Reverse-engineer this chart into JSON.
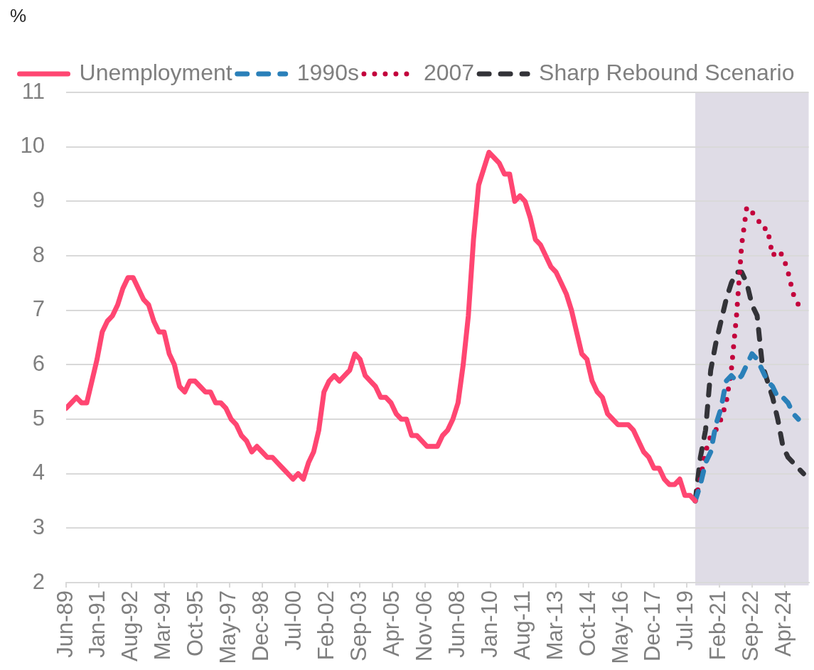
{
  "chart_data": {
    "type": "line",
    "ylabel": "%",
    "x": [
      "1989-06",
      "1989-09",
      "1989-12",
      "1990-03",
      "1990-06",
      "1990-09",
      "1990-12",
      "1991-03",
      "1991-06",
      "1991-09",
      "1991-12",
      "1992-03",
      "1992-06",
      "1992-09",
      "1992-12",
      "1993-03",
      "1993-06",
      "1993-09",
      "1993-12",
      "1994-03",
      "1994-06",
      "1994-09",
      "1994-12",
      "1995-03",
      "1995-06",
      "1995-09",
      "1995-12",
      "1996-03",
      "1996-06",
      "1996-09",
      "1996-12",
      "1997-03",
      "1997-06",
      "1997-09",
      "1997-12",
      "1998-03",
      "1998-06",
      "1998-09",
      "1998-12",
      "1999-03",
      "1999-06",
      "1999-09",
      "1999-12",
      "2000-03",
      "2000-06",
      "2000-09",
      "2000-12",
      "2001-03",
      "2001-06",
      "2001-09",
      "2001-12",
      "2002-03",
      "2002-06",
      "2002-09",
      "2002-12",
      "2003-03",
      "2003-06",
      "2003-09",
      "2003-12",
      "2004-03",
      "2004-06",
      "2004-09",
      "2004-12",
      "2005-03",
      "2005-06",
      "2005-09",
      "2005-12",
      "2006-03",
      "2006-06",
      "2006-09",
      "2006-12",
      "2007-03",
      "2007-06",
      "2007-09",
      "2007-12",
      "2008-03",
      "2008-06",
      "2008-09",
      "2008-12",
      "2009-03",
      "2009-06",
      "2009-09",
      "2009-12",
      "2010-03",
      "2010-06",
      "2010-09",
      "2010-12",
      "2011-03",
      "2011-06",
      "2011-09",
      "2011-12",
      "2012-03",
      "2012-06",
      "2012-09",
      "2012-12",
      "2013-03",
      "2013-06",
      "2013-09",
      "2013-12",
      "2014-03",
      "2014-06",
      "2014-09",
      "2014-12",
      "2015-03",
      "2015-06",
      "2015-09",
      "2015-12",
      "2016-03",
      "2016-06",
      "2016-09",
      "2016-12",
      "2017-03",
      "2017-06",
      "2017-09",
      "2017-12",
      "2018-03",
      "2018-06",
      "2018-09",
      "2018-12",
      "2019-03",
      "2019-06",
      "2019-09",
      "2019-12"
    ],
    "series": [
      {
        "name": "Unemployment",
        "color": "#ff4672",
        "line_style": "solid",
        "values": [
          5.2,
          5.3,
          5.4,
          5.3,
          5.3,
          5.7,
          6.1,
          6.6,
          6.8,
          6.9,
          7.1,
          7.4,
          7.6,
          7.6,
          7.4,
          7.2,
          7.1,
          6.8,
          6.6,
          6.6,
          6.2,
          6.0,
          5.6,
          5.5,
          5.7,
          5.7,
          5.6,
          5.5,
          5.5,
          5.3,
          5.3,
          5.2,
          5.0,
          4.9,
          4.7,
          4.6,
          4.4,
          4.5,
          4.4,
          4.3,
          4.3,
          4.2,
          4.1,
          4.0,
          3.9,
          4.0,
          3.9,
          4.2,
          4.4,
          4.8,
          5.5,
          5.7,
          5.8,
          5.7,
          5.8,
          5.9,
          6.2,
          6.1,
          5.8,
          5.7,
          5.6,
          5.4,
          5.4,
          5.3,
          5.1,
          5.0,
          5.0,
          4.7,
          4.7,
          4.6,
          4.5,
          4.5,
          4.5,
          4.7,
          4.8,
          5.0,
          5.3,
          6.0,
          6.9,
          8.3,
          9.3,
          9.6,
          9.9,
          9.8,
          9.7,
          9.5,
          9.5,
          9.0,
          9.1,
          9.0,
          8.7,
          8.3,
          8.2,
          8.0,
          7.8,
          7.7,
          7.5,
          7.3,
          7.0,
          6.6,
          6.2,
          6.1,
          5.7,
          5.5,
          5.4,
          5.1,
          5.0,
          4.9,
          4.9,
          4.9,
          4.8,
          4.6,
          4.4,
          4.3,
          4.1,
          4.1,
          3.9,
          3.8,
          3.8,
          3.9,
          3.6,
          3.6,
          3.5
        ]
      },
      {
        "name": "1990s",
        "color": "#2a80b9",
        "line_style": "dashed",
        "x": [
          "2019-12",
          "2020-03",
          "2020-06",
          "2020-09",
          "2020-12",
          "2021-03",
          "2021-06",
          "2021-09",
          "2021-12",
          "2022-03",
          "2022-06",
          "2022-09",
          "2022-12",
          "2023-03",
          "2023-06",
          "2023-09",
          "2023-12",
          "2024-03",
          "2024-06",
          "2024-09",
          "2024-12"
        ],
        "values": [
          3.5,
          3.8,
          4.2,
          4.4,
          4.9,
          5.2,
          5.7,
          5.8,
          5.7,
          5.8,
          6.0,
          6.2,
          6.1,
          5.9,
          5.7,
          5.6,
          5.4,
          5.4,
          5.3,
          5.1,
          5.0
        ]
      },
      {
        "name": "2007",
        "color": "#c3003c",
        "line_style": "dotted",
        "x": [
          "2019-12",
          "2020-03",
          "2020-06",
          "2020-09",
          "2020-12",
          "2021-03",
          "2021-06",
          "2021-09",
          "2021-12",
          "2022-03",
          "2022-06",
          "2022-09",
          "2022-12",
          "2023-03",
          "2023-06",
          "2023-09",
          "2023-12",
          "2024-03",
          "2024-06",
          "2024-09",
          "2024-12"
        ],
        "values": [
          3.5,
          3.9,
          4.4,
          4.7,
          4.8,
          5.0,
          5.3,
          5.9,
          6.9,
          8.2,
          8.9,
          8.8,
          8.7,
          8.5,
          8.5,
          8.0,
          8.1,
          8.0,
          7.7,
          7.3,
          7.1
        ]
      },
      {
        "name": "Sharp Rebound Scenario",
        "color": "#333338",
        "line_style": "dashed",
        "x": [
          "2019-12",
          "2020-03",
          "2020-06",
          "2020-09",
          "2020-12",
          "2021-03",
          "2021-06",
          "2021-09",
          "2021-12",
          "2022-03",
          "2022-06",
          "2022-09",
          "2022-12",
          "2023-03",
          "2023-06",
          "2023-09",
          "2023-12",
          "2024-03",
          "2024-06",
          "2024-09",
          "2024-12",
          "2025-03"
        ],
        "values": [
          3.5,
          4.3,
          4.8,
          5.9,
          6.4,
          6.8,
          7.2,
          7.5,
          7.7,
          7.7,
          7.5,
          7.1,
          6.9,
          6.0,
          5.7,
          5.4,
          5.0,
          4.5,
          4.3,
          4.2,
          4.1,
          4.0
        ]
      }
    ],
    "xlim": [
      "1989-06",
      "2025-06"
    ],
    "xticks": [
      {
        "value": "1989-06",
        "label": "Jun-89"
      },
      {
        "value": "1991-01",
        "label": "Jan-91"
      },
      {
        "value": "1992-08",
        "label": "Aug-92"
      },
      {
        "value": "1994-03",
        "label": "Mar-94"
      },
      {
        "value": "1995-10",
        "label": "Oct-95"
      },
      {
        "value": "1997-05",
        "label": "May-97"
      },
      {
        "value": "1998-12",
        "label": "Dec-98"
      },
      {
        "value": "2000-07",
        "label": "Jul-00"
      },
      {
        "value": "2002-02",
        "label": "Feb-02"
      },
      {
        "value": "2003-09",
        "label": "Sep-03"
      },
      {
        "value": "2005-04",
        "label": "Apr-05"
      },
      {
        "value": "2006-11",
        "label": "Nov-06"
      },
      {
        "value": "2008-06",
        "label": "Jun-08"
      },
      {
        "value": "2010-01",
        "label": "Jan-10"
      },
      {
        "value": "2011-08",
        "label": "Aug-11"
      },
      {
        "value": "2013-03",
        "label": "Mar-13"
      },
      {
        "value": "2014-10",
        "label": "Oct-14"
      },
      {
        "value": "2016-05",
        "label": "May-16"
      },
      {
        "value": "2017-12",
        "label": "Dec-17"
      },
      {
        "value": "2019-07",
        "label": "Jul-19"
      },
      {
        "value": "2021-02",
        "label": "Feb-21"
      },
      {
        "value": "2022-09",
        "label": "Sep-22"
      },
      {
        "value": "2024-04",
        "label": "Apr-24"
      }
    ],
    "ylim": [
      2,
      11
    ],
    "yticks": [
      2,
      3,
      4,
      5,
      6,
      7,
      8,
      9,
      10,
      11
    ],
    "grid": "y",
    "legend": "top",
    "bands": [
      {
        "axis": "x",
        "from": "2019-12",
        "to": "2025-06",
        "color": "#dfdce6"
      }
    ]
  }
}
